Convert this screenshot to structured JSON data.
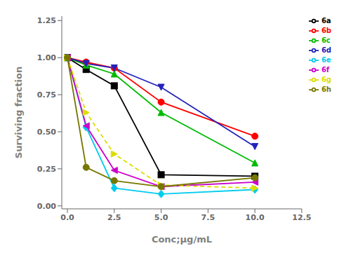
{
  "chart_data": {
    "type": "line",
    "xlabel": "Conc;μg/mL",
    "ylabel": "Surviving fraction",
    "x": [
      0.0,
      1.0,
      2.5,
      5.0,
      10.0
    ],
    "series": [
      {
        "name": "6a",
        "color": "#000000",
        "marker": "square",
        "line_style": "solid",
        "values": [
          1.0,
          0.92,
          0.81,
          0.21,
          0.2
        ]
      },
      {
        "name": "6b",
        "color": "#ff0000",
        "marker": "circle",
        "line_style": "solid",
        "values": [
          1.0,
          0.97,
          0.93,
          0.7,
          0.47
        ]
      },
      {
        "name": "6c",
        "color": "#00bb00",
        "marker": "triangle-up",
        "line_style": "solid",
        "values": [
          1.0,
          0.95,
          0.89,
          0.63,
          0.29
        ]
      },
      {
        "name": "6d",
        "color": "#2222bb",
        "marker": "triangle-down",
        "line_style": "solid",
        "values": [
          1.0,
          0.96,
          0.93,
          0.8,
          0.4
        ]
      },
      {
        "name": "6e",
        "color": "#00ccee",
        "marker": "diamond",
        "line_style": "solid",
        "values": [
          1.0,
          0.53,
          0.12,
          0.08,
          0.11
        ]
      },
      {
        "name": "6f",
        "color": "#cc00cc",
        "marker": "triangle-left",
        "line_style": "solid",
        "values": [
          1.0,
          0.54,
          0.24,
          0.13,
          0.16
        ]
      },
      {
        "name": "6g",
        "color": "#dddd00",
        "marker": "triangle-right",
        "line_style": "dashed",
        "values": [
          1.0,
          0.63,
          0.35,
          0.14,
          0.12
        ]
      },
      {
        "name": "6h",
        "color": "#777700",
        "marker": "circle",
        "line_style": "solid",
        "values": [
          1.0,
          0.26,
          0.17,
          0.13,
          0.19
        ]
      }
    ],
    "xlim": [
      -0.3,
      12.5
    ],
    "ylim": [
      -0.02,
      1.28
    ],
    "xticks": [
      {
        "value": 0.0,
        "label": "0.0"
      },
      2.5,
      {
        "value": 5.0,
        "label": "5.0"
      },
      7.5,
      {
        "value": 10.0,
        "label": "10.0"
      },
      12.5
    ],
    "yticks": [
      {
        "value": 0.0,
        "label": "0.00"
      },
      0.25,
      {
        "value": 0.5,
        "label": "0.50"
      },
      0.75,
      {
        "value": 1.0,
        "label": "1.00"
      },
      1.25
    ],
    "legend": "upper right",
    "grid": false
  }
}
